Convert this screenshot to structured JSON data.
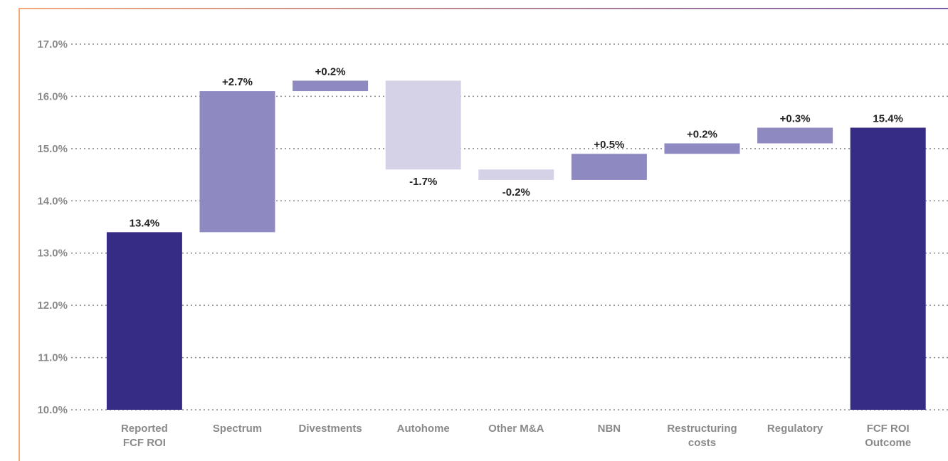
{
  "chart_data": {
    "type": "waterfall",
    "categories": [
      "Reported\nFCF ROI",
      "Spectrum",
      "Divestments",
      "Autohome",
      "Other M&A",
      "NBN",
      "Restructuring\ncosts",
      "Regulatory",
      "FCF ROI\nOutcome"
    ],
    "measure": [
      "absolute",
      "relative",
      "relative",
      "relative",
      "relative",
      "relative",
      "relative",
      "relative",
      "absolute"
    ],
    "values": [
      13.4,
      2.7,
      0.2,
      -1.7,
      -0.2,
      0.5,
      0.2,
      0.3,
      15.4
    ],
    "value_labels": [
      "13.4%",
      "+2.7%",
      "+0.2%",
      "-1.7%",
      "-0.2%",
      "+0.5%",
      "+0.2%",
      "+0.3%",
      "15.4%"
    ],
    "colors": {
      "total": "#372c85",
      "increase": "#8f89c1",
      "decrease": "#d5d2e8"
    },
    "ylim": [
      10,
      17
    ],
    "yticks": [
      {
        "value": 10,
        "label": "10.0%"
      },
      {
        "value": 11,
        "label": "11.0%"
      },
      {
        "value": 12,
        "label": "12.0%"
      },
      {
        "value": 13,
        "label": "13.0%"
      },
      {
        "value": 14,
        "label": "14.0%"
      },
      {
        "value": 15,
        "label": "15.0%"
      },
      {
        "value": 16,
        "label": "16.0%"
      },
      {
        "value": 17,
        "label": "17.0%"
      }
    ],
    "grid": true
  }
}
